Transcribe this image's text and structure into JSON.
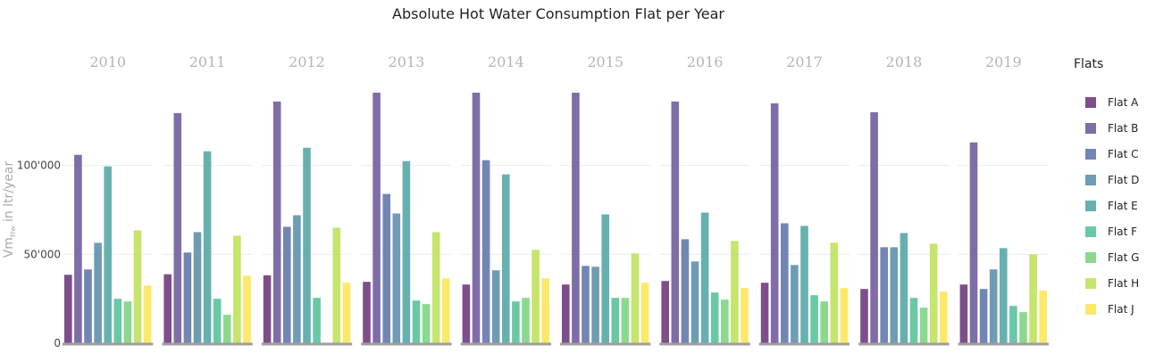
{
  "chart_data": {
    "type": "bar",
    "title": "Absolute Hot Water Consumption Flat per Year",
    "ylabel": "Vm",
    "ylabel_sub": "Hw",
    "ylabel_suffix": " in ltr/year",
    "ylim": [
      0,
      148000
    ],
    "yticks": [
      0,
      50000,
      100000
    ],
    "ytick_labels": [
      "0",
      "50'000",
      "100'000"
    ],
    "grid": true,
    "legend_title": "Flats",
    "legend_position": "right",
    "facets": [
      "2010",
      "2011",
      "2012",
      "2013",
      "2014",
      "2015",
      "2016",
      "2017",
      "2018",
      "2019"
    ],
    "series": [
      {
        "name": "Flat A",
        "color": "#7d4e8a",
        "values": [
          38500,
          38800,
          38200,
          34500,
          33000,
          33000,
          35000,
          34000,
          30500,
          33000
        ]
      },
      {
        "name": "Flat B",
        "color": "#7f6da8",
        "values": [
          106000,
          129500,
          136000,
          141000,
          141000,
          141000,
          136000,
          135000,
          130000,
          113000
        ]
      },
      {
        "name": "Flat C",
        "color": "#7286b4",
        "values": [
          41500,
          51000,
          65500,
          84000,
          103000,
          43500,
          58500,
          67500,
          54000,
          30500
        ]
      },
      {
        "name": "Flat D",
        "color": "#6e9cb4",
        "values": [
          56500,
          62500,
          72000,
          73000,
          41000,
          43000,
          46000,
          44000,
          54000,
          41500
        ]
      },
      {
        "name": "Flat E",
        "color": "#67b0b0",
        "values": [
          99500,
          108000,
          110000,
          102500,
          95000,
          72500,
          73500,
          66000,
          62000,
          53500
        ]
      },
      {
        "name": "Flat F",
        "color": "#6ac9a5",
        "values": [
          25000,
          25000,
          25500,
          24000,
          23500,
          25500,
          28500,
          27000,
          25500,
          21000
        ]
      },
      {
        "name": "Flat G",
        "color": "#8cd98d",
        "values": [
          23500,
          16000,
          null,
          22000,
          25500,
          25500,
          24500,
          23500,
          20000,
          17500
        ]
      },
      {
        "name": "Flat H",
        "color": "#c5e56c",
        "values": [
          63500,
          60500,
          65000,
          62500,
          52500,
          50500,
          57500,
          56500,
          56000,
          50000
        ]
      },
      {
        "name": "Flat J",
        "color": "#fce96a",
        "values": [
          32500,
          38000,
          34000,
          36500,
          36500,
          34000,
          31000,
          31000,
          29000,
          29500
        ]
      }
    ]
  }
}
